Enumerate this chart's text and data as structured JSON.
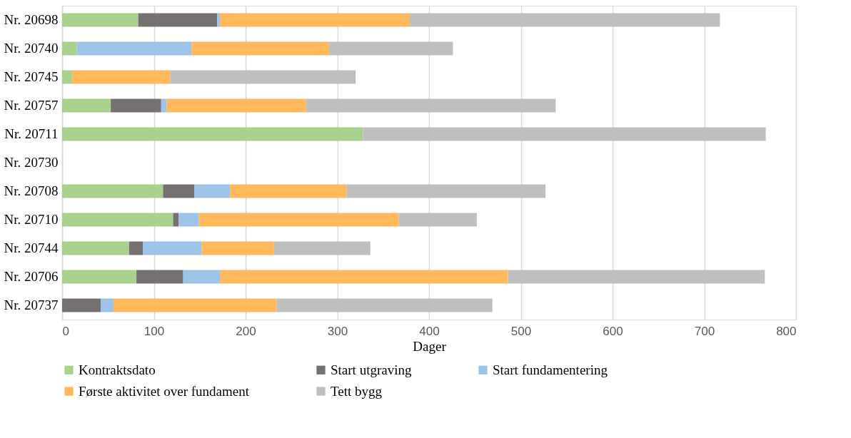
{
  "chart_data": {
    "type": "bar",
    "orientation": "horizontal",
    "stacked": true,
    "xlabel": "Dager",
    "categories": [
      "Nr. 20698",
      "Nr. 20740",
      "Nr. 20745",
      "Nr. 20757",
      "Nr. 20711",
      "Nr. 20730",
      "Nr. 20708",
      "Nr. 20710",
      "Nr. 20744",
      "Nr. 20706",
      "Nr. 20737"
    ],
    "series": [
      {
        "name": "Kontraktsdato",
        "color": "#a9d18e",
        "values": [
          83,
          16,
          11,
          53,
          328,
          null,
          110,
          121,
          73,
          81,
          null
        ]
      },
      {
        "name": "Start utgraving",
        "color": "#767171",
        "values": [
          86,
          null,
          null,
          55,
          null,
          null,
          34,
          6,
          15,
          51,
          42
        ]
      },
      {
        "name": "Start fundamentering",
        "color": "#9dc3e6",
        "values": [
          3,
          125,
          null,
          6,
          null,
          null,
          39,
          22,
          64,
          40,
          14
        ]
      },
      {
        "name": "Første aktivitet over fundament",
        "color": "#ffb85c",
        "values": [
          207,
          150,
          107,
          152,
          null,
          null,
          127,
          218,
          79,
          314,
          178
        ]
      },
      {
        "name": "Tett bygg",
        "color": "#bfbfbf",
        "values": [
          338,
          135,
          202,
          272,
          439,
          null,
          217,
          85,
          105,
          280,
          235
        ]
      }
    ],
    "xlim": [
      0,
      800
    ],
    "xticks": [
      0,
      100,
      200,
      300,
      400,
      500,
      600,
      700,
      800
    ],
    "grid": "x",
    "legend": "bottom"
  }
}
